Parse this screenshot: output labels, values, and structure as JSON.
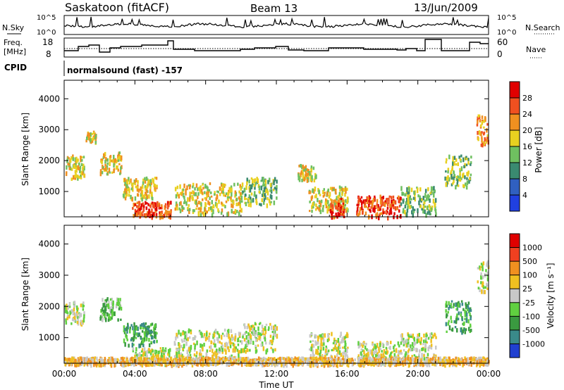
{
  "header": {
    "station": "Saskatoon (fitACF)",
    "beam": "Beam 13",
    "date": "13/Jun/2009"
  },
  "top_panels": {
    "nsky_label": "N.Sky",
    "nsky_ticks": [
      "10^5",
      "10^0"
    ],
    "nsearch_label": "N.Search",
    "nsearch_ticks": [
      "10^5",
      "10^0"
    ],
    "freq_label_1": "Freq.",
    "freq_label_2": "[MHz]",
    "freq_ticks": [
      "18",
      "8"
    ],
    "nave_label": "Nave",
    "nave_ticks": [
      "60",
      "0"
    ],
    "cpid_label": "CPID",
    "cpid_text": "normalsound (fast) -157"
  },
  "chart_data": [
    {
      "type": "heatmap",
      "title": "",
      "xlabel": "Time UT",
      "ylabel": "Slant Range [km]",
      "x_ticks": [
        "00:00",
        "04:00",
        "08:00",
        "12:00",
        "16:00",
        "20:00",
        "00:00"
      ],
      "y_ticks": [
        1000,
        2000,
        3000,
        4000
      ],
      "ylim": [
        180,
        4600
      ],
      "colorbar_label": "Power [dB]",
      "colorbar_ticks": [
        4,
        8,
        12,
        16,
        20,
        24,
        28
      ],
      "colorbar_colors": [
        "#2040e0",
        "#3060c0",
        "#3a8a70",
        "#6fc060",
        "#e8d020",
        "#f09020",
        "#f05020",
        "#e00000"
      ],
      "regions": [
        {
          "t0": 0.0,
          "t1": 1.1,
          "r0": 1450,
          "r1": 2200,
          "level": 4
        },
        {
          "t0": 1.2,
          "t1": 1.8,
          "r0": 2600,
          "r1": 3000,
          "level": 4
        },
        {
          "t0": 2.0,
          "t1": 3.2,
          "r0": 1600,
          "r1": 2300,
          "level": 4
        },
        {
          "t0": 3.3,
          "t1": 5.2,
          "r0": 800,
          "r1": 1500,
          "level": 4
        },
        {
          "t0": 3.8,
          "t1": 6.0,
          "r0": 200,
          "r1": 700,
          "level": 6
        },
        {
          "t0": 6.2,
          "t1": 10.0,
          "r0": 300,
          "r1": 1300,
          "level": 4
        },
        {
          "t0": 10.0,
          "t1": 12.0,
          "r0": 600,
          "r1": 1500,
          "level": 3
        },
        {
          "t0": 13.2,
          "t1": 14.2,
          "r0": 1400,
          "r1": 1900,
          "level": 4
        },
        {
          "t0": 13.8,
          "t1": 16.0,
          "r0": 400,
          "r1": 1200,
          "level": 4
        },
        {
          "t0": 15.0,
          "t1": 15.8,
          "r0": 200,
          "r1": 800,
          "level": 6
        },
        {
          "t0": 16.5,
          "t1": 19.0,
          "r0": 200,
          "r1": 900,
          "level": 6
        },
        {
          "t0": 19.0,
          "t1": 21.0,
          "r0": 300,
          "r1": 1200,
          "level": 3
        },
        {
          "t0": 21.5,
          "t1": 23.0,
          "r0": 1200,
          "r1": 2200,
          "level": 3
        },
        {
          "t0": 23.3,
          "t1": 24.0,
          "r0": 2500,
          "r1": 3500,
          "level": 5
        }
      ]
    },
    {
      "type": "heatmap",
      "title": "",
      "xlabel": "Time UT",
      "ylabel": "Slant Range [km]",
      "x_ticks": [
        "00:00",
        "04:00",
        "08:00",
        "12:00",
        "16:00",
        "20:00",
        "00:00"
      ],
      "y_ticks": [
        1000,
        2000,
        3000,
        4000
      ],
      "ylim": [
        180,
        4600
      ],
      "colorbar_label": "Velocity [m s⁻¹]",
      "colorbar_ticks": [
        1000,
        500,
        100,
        25,
        -25,
        -100,
        -500,
        -1000
      ],
      "colorbar_colors": [
        "#2040d0",
        "#3a8a8a",
        "#3a9a40",
        "#60d040",
        "#c8c8c8",
        "#f0c020",
        "#f09020",
        "#f04020",
        "#e00000"
      ],
      "regions": [
        {
          "t0": 0.0,
          "t1": 1.1,
          "r0": 1450,
          "r1": 2200,
          "level": 4
        },
        {
          "t0": 2.0,
          "t1": 3.2,
          "r0": 1600,
          "r1": 2300,
          "level": 3
        },
        {
          "t0": 3.3,
          "t1": 5.2,
          "r0": 800,
          "r1": 1500,
          "level": 2
        },
        {
          "t0": 3.8,
          "t1": 6.0,
          "r0": 200,
          "r1": 700,
          "level": 4
        },
        {
          "t0": 6.2,
          "t1": 10.0,
          "r0": 300,
          "r1": 1300,
          "level": 4
        },
        {
          "t0": 10.0,
          "t1": 12.0,
          "r0": 600,
          "r1": 1500,
          "level": 4
        },
        {
          "t0": 13.8,
          "t1": 16.0,
          "r0": 400,
          "r1": 1200,
          "level": 4
        },
        {
          "t0": 16.5,
          "t1": 19.0,
          "r0": 200,
          "r1": 900,
          "level": 4
        },
        {
          "t0": 19.0,
          "t1": 21.0,
          "r0": 300,
          "r1": 1200,
          "level": 4
        },
        {
          "t0": 21.5,
          "t1": 23.0,
          "r0": 1200,
          "r1": 2200,
          "level": 2
        },
        {
          "t0": 23.3,
          "t1": 24.0,
          "r0": 2500,
          "r1": 3500,
          "level": 4
        },
        {
          "t0": 0.0,
          "t1": 24.0,
          "r0": 180,
          "r1": 400,
          "level": 5
        }
      ]
    }
  ]
}
